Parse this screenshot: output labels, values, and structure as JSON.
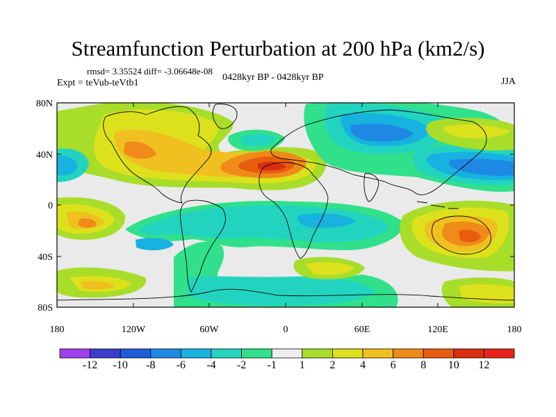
{
  "title": "Streamfunction Perturbation at 200 hPa (km2/s)",
  "stats": "rmsd= 3.35524 diff= -3.06648e-08",
  "expt": "Expt = teVub-teVtb1",
  "period": "0428kyr BP - 0428kyr BP",
  "season": "JJA",
  "map": {
    "lat_labels": [
      "80N",
      "40N",
      "0",
      "40S",
      "80S"
    ],
    "lon_labels": [
      "180",
      "120W",
      "60W",
      "0",
      "60E",
      "120E",
      "180"
    ]
  },
  "colorbar": {
    "labels": [
      "-12",
      "-10",
      "-8",
      "-6",
      "-4",
      "-2",
      "-1",
      "1",
      "2",
      "4",
      "6",
      "8",
      "10",
      "12"
    ],
    "colors": [
      "#9f3ff0",
      "#3c3ccf",
      "#1e5bd8",
      "#1e88e5",
      "#17b2e0",
      "#22d4c0",
      "#30e08a",
      "#eeeeee",
      "#a8dd2a",
      "#dde11c",
      "#f0c020",
      "#f08a18",
      "#e85c10",
      "#d82e0e",
      "#e8221a"
    ]
  }
}
